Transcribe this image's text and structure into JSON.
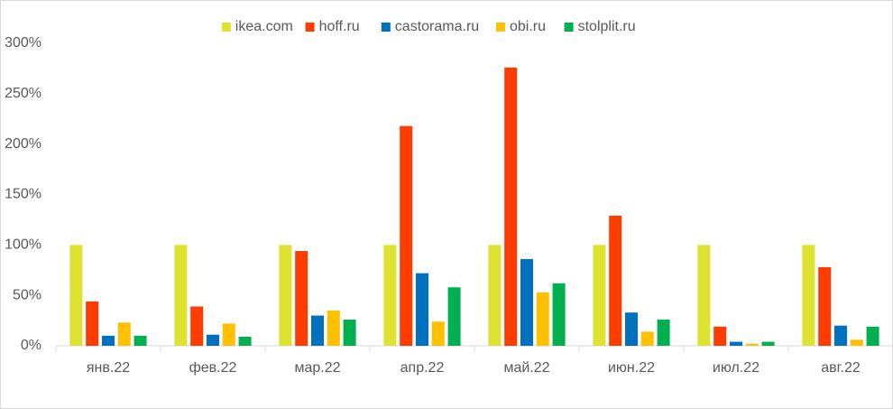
{
  "chart_data": {
    "type": "bar",
    "categories": [
      "янв.22",
      "фев.22",
      "мар.22",
      "апр.22",
      "май.22",
      "июн.22",
      "июл.22",
      "авг.22"
    ],
    "series": [
      {
        "name": "ikea.com",
        "color": "#dde330",
        "values": [
          100,
          100,
          100,
          100,
          100,
          100,
          100,
          100
        ]
      },
      {
        "name": "hoff.ru",
        "color": "#ff3c00",
        "values": [
          44,
          39,
          94,
          218,
          276,
          129,
          19,
          78
        ]
      },
      {
        "name": "castorama.ru",
        "color": "#0070c0",
        "values": [
          10,
          11,
          30,
          72,
          86,
          33,
          4,
          20
        ]
      },
      {
        "name": "obi.ru",
        "color": "#ffc000",
        "values": [
          23,
          22,
          35,
          24,
          53,
          14,
          2,
          6
        ]
      },
      {
        "name": "stolplit.ru",
        "color": "#00b050",
        "values": [
          10,
          9,
          26,
          58,
          62,
          26,
          4,
          19
        ]
      }
    ],
    "ylim": [
      0,
      300
    ],
    "yticks": [
      {
        "value": 0,
        "label": "0%"
      },
      {
        "value": 50,
        "label": "50%"
      },
      {
        "value": 100,
        "label": "100%"
      },
      {
        "value": 150,
        "label": "150%"
      },
      {
        "value": 200,
        "label": "200%"
      },
      {
        "value": 250,
        "label": "250%"
      },
      {
        "value": 300,
        "label": "300%"
      }
    ],
    "grid": false,
    "legend": "top"
  }
}
